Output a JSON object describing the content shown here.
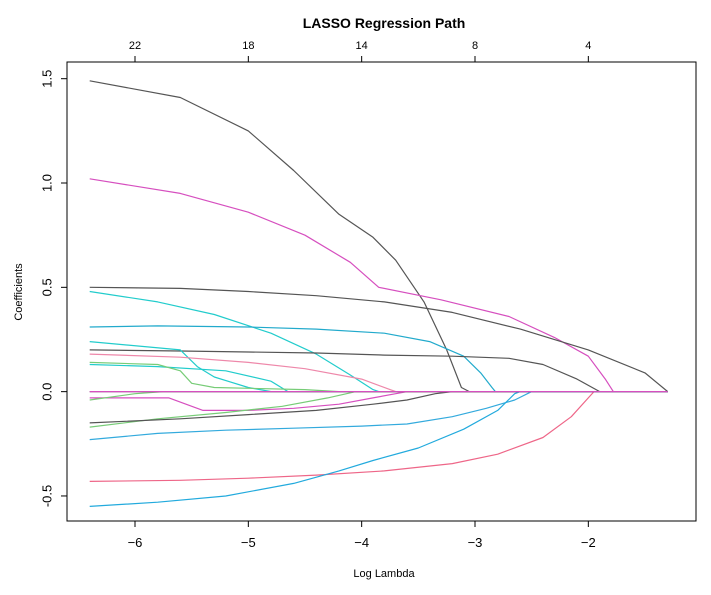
{
  "chart_data": {
    "type": "line",
    "title": "LASSO Regression Path",
    "xlabel": "Log Lambda",
    "ylabel": "Coefficients",
    "xlim": [
      -6.6,
      -1.05
    ],
    "ylim": [
      -0.62,
      1.58
    ],
    "x_ticks": [
      -6,
      -5,
      -4,
      -3,
      -2
    ],
    "x_tick_labels": [
      "−6",
      "−5",
      "−4",
      "−3",
      "−2"
    ],
    "y_ticks": [
      -0.5,
      0.0,
      0.5,
      1.0,
      1.5
    ],
    "y_tick_labels": [
      "-0.5",
      "0.0",
      "0.5",
      "1.0",
      "1.5"
    ],
    "top_axis": {
      "positions": [
        -6.0,
        -5.0,
        -4.0,
        -3.0,
        -2.0
      ],
      "labels": [
        "22",
        "18",
        "14",
        "8",
        "4"
      ]
    },
    "grid": false,
    "legend": "none",
    "series": [
      {
        "color": "#555555",
        "points": [
          [
            -6.4,
            1.49
          ],
          [
            -5.6,
            1.41
          ],
          [
            -5.0,
            1.25
          ],
          [
            -4.6,
            1.06
          ],
          [
            -4.2,
            0.85
          ],
          [
            -3.9,
            0.74
          ],
          [
            -3.7,
            0.63
          ],
          [
            -3.45,
            0.43
          ],
          [
            -3.25,
            0.2
          ],
          [
            -3.12,
            0.02
          ],
          [
            -3.05,
            0.0
          ],
          [
            -1.3,
            0.0
          ]
        ]
      },
      {
        "color": "#d64fbf",
        "points": [
          [
            -6.4,
            1.02
          ],
          [
            -5.6,
            0.95
          ],
          [
            -5.0,
            0.86
          ],
          [
            -4.5,
            0.75
          ],
          [
            -4.1,
            0.62
          ],
          [
            -3.85,
            0.5
          ],
          [
            -3.3,
            0.44
          ],
          [
            -2.7,
            0.36
          ],
          [
            -2.3,
            0.26
          ],
          [
            -2.0,
            0.17
          ],
          [
            -1.85,
            0.06
          ],
          [
            -1.78,
            0.0
          ],
          [
            -1.3,
            0.0
          ]
        ]
      },
      {
        "color": "#555555",
        "points": [
          [
            -6.4,
            0.5
          ],
          [
            -5.6,
            0.495
          ],
          [
            -5.0,
            0.48
          ],
          [
            -4.4,
            0.46
          ],
          [
            -3.8,
            0.43
          ],
          [
            -3.2,
            0.38
          ],
          [
            -2.6,
            0.3
          ],
          [
            -2.0,
            0.2
          ],
          [
            -1.5,
            0.09
          ],
          [
            -1.3,
            0.0
          ]
        ]
      },
      {
        "color": "#22cccc",
        "points": [
          [
            -6.4,
            0.48
          ],
          [
            -5.8,
            0.43
          ],
          [
            -5.3,
            0.37
          ],
          [
            -4.8,
            0.28
          ],
          [
            -4.4,
            0.18
          ],
          [
            -4.1,
            0.08
          ],
          [
            -3.9,
            0.01
          ],
          [
            -3.85,
            0.0
          ],
          [
            -1.3,
            0.0
          ]
        ]
      },
      {
        "color": "#22aacc",
        "points": [
          [
            -6.4,
            0.31
          ],
          [
            -5.8,
            0.315
          ],
          [
            -5.0,
            0.31
          ],
          [
            -4.4,
            0.3
          ],
          [
            -3.8,
            0.28
          ],
          [
            -3.4,
            0.24
          ],
          [
            -3.1,
            0.17
          ],
          [
            -2.95,
            0.09
          ],
          [
            -2.85,
            0.02
          ],
          [
            -2.82,
            0.0
          ],
          [
            -1.3,
            0.0
          ]
        ]
      },
      {
        "color": "#555555",
        "points": [
          [
            -6.4,
            0.2
          ],
          [
            -5.6,
            0.195
          ],
          [
            -5.0,
            0.19
          ],
          [
            -4.4,
            0.185
          ],
          [
            -3.8,
            0.175
          ],
          [
            -3.2,
            0.17
          ],
          [
            -2.7,
            0.16
          ],
          [
            -2.4,
            0.13
          ],
          [
            -2.1,
            0.06
          ],
          [
            -1.9,
            0.0
          ],
          [
            -1.3,
            0.0
          ]
        ]
      },
      {
        "color": "#22cccc",
        "points": [
          [
            -6.4,
            0.24
          ],
          [
            -5.6,
            0.2
          ],
          [
            -5.45,
            0.12
          ],
          [
            -5.3,
            0.07
          ],
          [
            -5.0,
            0.02
          ],
          [
            -4.8,
            0.0
          ],
          [
            -1.3,
            0.0
          ]
        ]
      },
      {
        "color": "#ee88aa",
        "points": [
          [
            -6.4,
            0.18
          ],
          [
            -5.6,
            0.165
          ],
          [
            -5.0,
            0.14
          ],
          [
            -4.5,
            0.11
          ],
          [
            -4.0,
            0.06
          ],
          [
            -3.75,
            0.01
          ],
          [
            -3.7,
            0.0
          ],
          [
            -1.3,
            0.0
          ]
        ]
      },
      {
        "color": "#22cccc",
        "points": [
          [
            -6.4,
            0.13
          ],
          [
            -5.8,
            0.12
          ],
          [
            -5.2,
            0.1
          ],
          [
            -4.8,
            0.05
          ],
          [
            -4.65,
            0.0
          ],
          [
            -1.3,
            0.0
          ]
        ]
      },
      {
        "color": "#77cc77",
        "points": [
          [
            -6.4,
            0.14
          ],
          [
            -5.8,
            0.13
          ],
          [
            -5.6,
            0.1
          ],
          [
            -5.5,
            0.04
          ],
          [
            -5.3,
            0.02
          ],
          [
            -4.5,
            0.01
          ],
          [
            -4.2,
            0.0
          ],
          [
            -1.3,
            0.0
          ]
        ]
      },
      {
        "color": "#d64fbf",
        "points": [
          [
            -6.4,
            -0.03
          ],
          [
            -5.7,
            -0.03
          ],
          [
            -5.55,
            -0.06
          ],
          [
            -5.4,
            -0.09
          ],
          [
            -5.0,
            -0.09
          ],
          [
            -4.6,
            -0.08
          ],
          [
            -4.2,
            -0.06
          ],
          [
            -3.9,
            -0.03
          ],
          [
            -3.7,
            -0.01
          ],
          [
            -3.6,
            0.0
          ],
          [
            -1.3,
            0.0
          ]
        ]
      },
      {
        "color": "#77cc77",
        "points": [
          [
            -6.4,
            -0.04
          ],
          [
            -6.0,
            -0.01
          ],
          [
            -5.75,
            0.0
          ],
          [
            -1.3,
            0.0
          ]
        ]
      },
      {
        "color": "#77cc77",
        "points": [
          [
            -6.4,
            -0.17
          ],
          [
            -5.8,
            -0.13
          ],
          [
            -5.2,
            -0.1
          ],
          [
            -4.7,
            -0.07
          ],
          [
            -4.3,
            -0.03
          ],
          [
            -4.05,
            0.0
          ],
          [
            -1.3,
            0.0
          ]
        ]
      },
      {
        "color": "#555555",
        "points": [
          [
            -6.4,
            -0.15
          ],
          [
            -5.6,
            -0.13
          ],
          [
            -5.0,
            -0.11
          ],
          [
            -4.4,
            -0.09
          ],
          [
            -3.9,
            -0.06
          ],
          [
            -3.6,
            -0.04
          ],
          [
            -3.35,
            -0.01
          ],
          [
            -3.2,
            0.0
          ],
          [
            -1.3,
            0.0
          ]
        ]
      },
      {
        "color": "#33aadd",
        "points": [
          [
            -6.4,
            -0.23
          ],
          [
            -5.8,
            -0.2
          ],
          [
            -5.2,
            -0.185
          ],
          [
            -4.6,
            -0.175
          ],
          [
            -4.0,
            -0.165
          ],
          [
            -3.6,
            -0.155
          ],
          [
            -3.2,
            -0.12
          ],
          [
            -2.9,
            -0.08
          ],
          [
            -2.65,
            -0.04
          ],
          [
            -2.5,
            0.0
          ],
          [
            -1.3,
            0.0
          ]
        ]
      },
      {
        "color": "#ee6688",
        "points": [
          [
            -6.4,
            -0.43
          ],
          [
            -5.6,
            -0.425
          ],
          [
            -5.0,
            -0.415
          ],
          [
            -4.4,
            -0.4
          ],
          [
            -3.8,
            -0.38
          ],
          [
            -3.2,
            -0.345
          ],
          [
            -2.8,
            -0.3
          ],
          [
            -2.4,
            -0.22
          ],
          [
            -2.15,
            -0.12
          ],
          [
            -2.0,
            -0.03
          ],
          [
            -1.95,
            0.0
          ],
          [
            -1.3,
            0.0
          ]
        ]
      },
      {
        "color": "#22aadd",
        "points": [
          [
            -6.4,
            -0.55
          ],
          [
            -5.8,
            -0.53
          ],
          [
            -5.2,
            -0.5
          ],
          [
            -4.6,
            -0.44
          ],
          [
            -4.2,
            -0.38
          ],
          [
            -3.9,
            -0.33
          ],
          [
            -3.5,
            -0.27
          ],
          [
            -3.1,
            -0.18
          ],
          [
            -2.8,
            -0.09
          ],
          [
            -2.65,
            -0.01
          ],
          [
            -2.6,
            0.0
          ],
          [
            -1.3,
            0.0
          ]
        ]
      },
      {
        "color": "#555555",
        "points": [
          [
            -6.4,
            0.0
          ],
          [
            -1.3,
            0.0
          ]
        ]
      },
      {
        "color": "#d64fbf",
        "points": [
          [
            -6.4,
            0.0
          ],
          [
            -1.3,
            0.0
          ]
        ]
      }
    ]
  }
}
